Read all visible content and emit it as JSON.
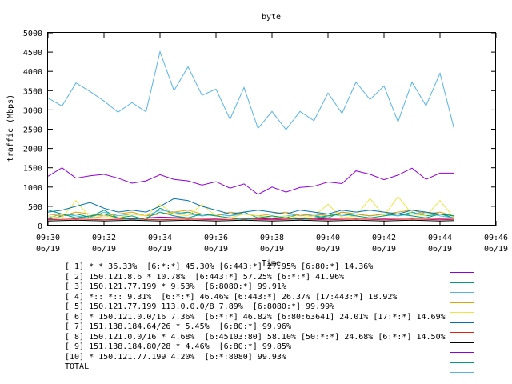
{
  "chart_data": {
    "type": "line",
    "title": "byte",
    "xlabel": "Time",
    "ylabel": "traffic (Mbps)",
    "ylim": [
      0,
      5000
    ],
    "yticks": [
      "0",
      "500",
      "1000",
      "1500",
      "2000",
      "2500",
      "3000",
      "3500",
      "4000",
      "4500",
      "5000"
    ],
    "xlim": [
      "09:30",
      "09:46"
    ],
    "xticks": [
      {
        "time": "09:30",
        "date": "06/19"
      },
      {
        "time": "09:32",
        "date": "06/19"
      },
      {
        "time": "09:34",
        "date": "06/19"
      },
      {
        "time": "09:36",
        "date": "06/19"
      },
      {
        "time": "09:38",
        "date": "06/19"
      },
      {
        "time": "09:40",
        "date": "06/19"
      },
      {
        "time": "09:42",
        "date": "06/19"
      },
      {
        "time": "09:44",
        "date": "06/19"
      },
      {
        "time": "09:46",
        "date": "06/19"
      }
    ],
    "grid": false,
    "legend_position": "bottom",
    "x": [
      "09:30:00",
      "09:30:30",
      "09:31:00",
      "09:31:30",
      "09:32:00",
      "09:32:30",
      "09:33:00",
      "09:33:30",
      "09:34:00",
      "09:34:30",
      "09:35:00",
      "09:35:30",
      "09:36:00",
      "09:36:30",
      "09:37:00",
      "09:37:30",
      "09:38:00",
      "09:38:30",
      "09:39:00",
      "09:39:30",
      "09:40:00",
      "09:40:30",
      "09:41:00",
      "09:41:30",
      "09:42:00",
      "09:42:30",
      "09:43:00",
      "09:43:30",
      "09:44:00",
      "09:44:30"
    ],
    "series": [
      {
        "name": "[ 1] * * 36.33%  [6:*:*] 45.30% [6:443:*] 27.95% [6:80:*] 14.36%",
        "color": "#9400d3",
        "values": [
          180,
          200,
          190,
          210,
          200,
          190,
          180,
          200,
          220,
          210,
          200,
          190,
          180,
          200,
          190,
          180,
          170,
          190,
          180,
          170,
          180,
          190,
          200,
          190,
          180,
          190,
          200,
          190,
          180,
          190
        ]
      },
      {
        "name": "[ 2] 150.121.8.6 * 10.78%  [6:443:*] 57.25% [6:*:*] 41.96%",
        "color": "#009e73",
        "values": [
          150,
          250,
          300,
          220,
          400,
          200,
          250,
          150,
          450,
          300,
          350,
          250,
          300,
          250,
          350,
          200,
          250,
          200,
          300,
          250,
          200,
          350,
          300,
          250,
          300,
          250,
          350,
          250,
          300,
          200
        ]
      },
      {
        "name": "[ 3] 150.121.77.199 * 9.53%  [6:8080:*] 99.91%",
        "color": "#56b4e9",
        "values": [
          200,
          300,
          250,
          200,
          350,
          250,
          300,
          250,
          400,
          350,
          300,
          250,
          300,
          250,
          300,
          250,
          200,
          250,
          300,
          250,
          300,
          250,
          300,
          250,
          300,
          250,
          300,
          350,
          250,
          200
        ]
      },
      {
        "name": "[ 4] *:: *:: 9.31%  [6:*:*] 46.46% [6:443:*] 26.37% [17:443:*] 18.92%",
        "color": "#e69f00",
        "values": [
          300,
          250,
          350,
          300,
          250,
          300,
          350,
          250,
          300,
          350,
          400,
          300,
          250,
          350,
          300,
          250,
          300,
          350,
          250,
          300,
          250,
          350,
          300,
          250,
          300,
          350,
          400,
          300,
          350,
          250
        ]
      },
      {
        "name": "[ 5] 150.121.77.199 113.0.0.0/8 7.89%  [6:8080:*] 99.99%",
        "color": "#f0e442",
        "values": [
          250,
          200,
          650,
          200,
          250,
          200,
          300,
          250,
          550,
          300,
          250,
          550,
          250,
          200,
          300,
          250,
          200,
          250,
          200,
          250,
          550,
          200,
          250,
          700,
          250,
          750,
          300,
          250,
          650,
          200
        ]
      },
      {
        "name": "[ 6] * 150.121.0.0/16 7.36%  [6:*:*] 46.82% [6:80:63641] 24.01% [17:*:*] 14.69%",
        "color": "#0072b2",
        "values": [
          350,
          400,
          500,
          600,
          450,
          350,
          400,
          350,
          500,
          700,
          650,
          500,
          400,
          300,
          350,
          400,
          350,
          300,
          400,
          350,
          300,
          400,
          350,
          400,
          350,
          300,
          400,
          350,
          300,
          250
        ]
      },
      {
        "name": "[ 7] 151.138.184.64/26 * 5.45%  [6:80:*] 99.96%",
        "color": "#e51e10",
        "values": [
          150,
          160,
          170,
          160,
          150,
          160,
          170,
          160,
          150,
          160,
          170,
          160,
          150,
          160,
          170,
          160,
          150,
          160,
          170,
          160,
          150,
          160,
          170,
          160,
          150,
          160,
          170,
          160,
          150,
          160
        ]
      },
      {
        "name": "[ 8] 150.121.0.0/16 * 4.68%  [6:45103:80] 58.10% [50:*:*] 24.68% [6:*:*] 14.50%",
        "color": "#000000",
        "values": [
          120,
          130,
          140,
          130,
          120,
          130,
          140,
          130,
          120,
          130,
          140,
          130,
          120,
          130,
          140,
          130,
          120,
          130,
          140,
          130,
          120,
          130,
          140,
          130,
          120,
          130,
          140,
          130,
          120,
          130
        ]
      },
      {
        "name": "[ 9] 151.138.184.80/28 * 4.46%  [6:80:*] 99.85%",
        "color": "#9400d3",
        "values": [
          1280,
          1500,
          1230,
          1290,
          1330,
          1230,
          1100,
          1160,
          1320,
          1200,
          1160,
          1050,
          1140,
          970,
          1080,
          810,
          1000,
          870,
          990,
          1020,
          1130,
          1090,
          1420,
          1330,
          1190,
          1310,
          1490,
          1200,
          1360,
          1360
        ]
      },
      {
        "name": "[10] * 150.121.77.199 4.20%  [6:*:8080] 99.93%",
        "color": "#009e73",
        "values": [
          400,
          300,
          200,
          250,
          300,
          200,
          150,
          200,
          350,
          250,
          200,
          300,
          250,
          200,
          150,
          200,
          250,
          200,
          150,
          200,
          250,
          300,
          250,
          200,
          250,
          300,
          250,
          200,
          300,
          250
        ]
      },
      {
        "name": "TOTAL",
        "color": "#56b4e9",
        "values": [
          3310,
          3100,
          3700,
          3480,
          3230,
          2940,
          3190,
          2950,
          4510,
          3500,
          4120,
          3380,
          3540,
          2760,
          3580,
          2520,
          2960,
          2490,
          2960,
          2720,
          3440,
          2910,
          3720,
          3270,
          3620,
          2690,
          3720,
          3110,
          3950,
          2520
        ]
      }
    ]
  }
}
